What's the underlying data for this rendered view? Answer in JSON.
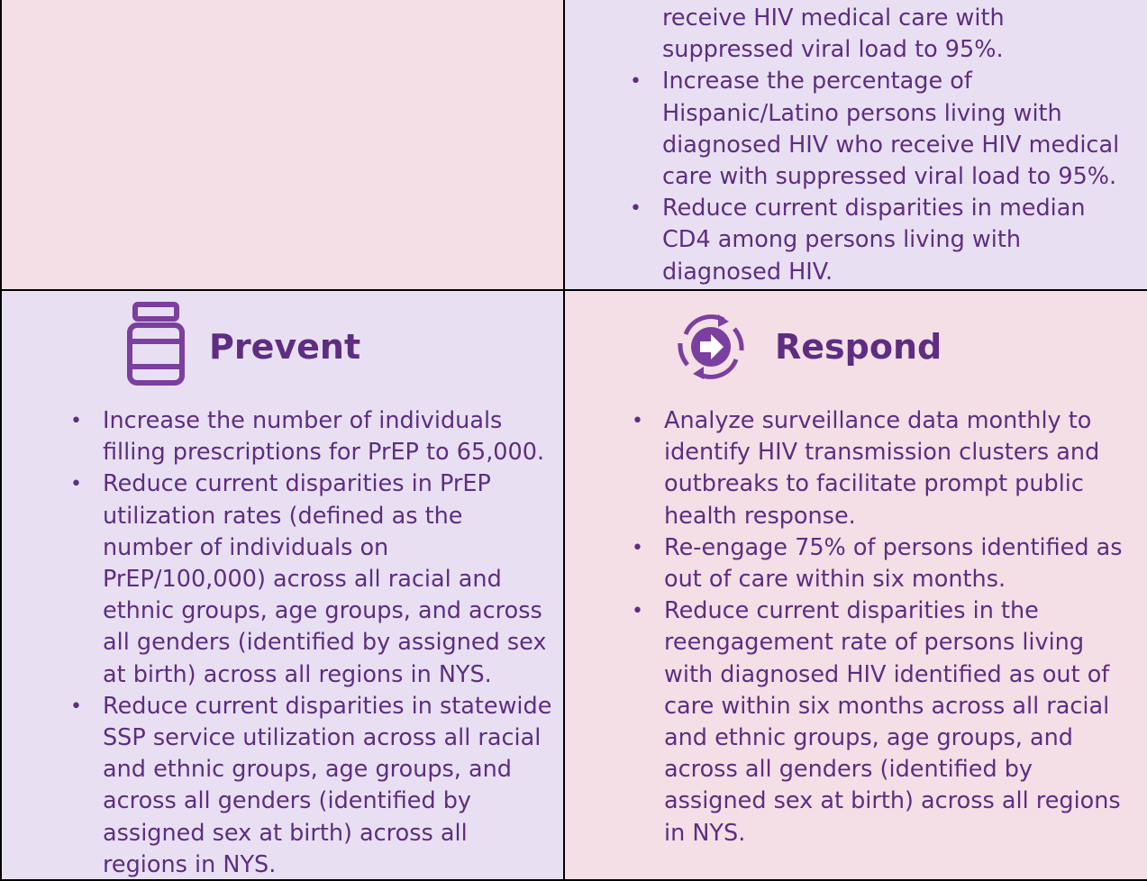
{
  "top_right": {
    "continuation": "receive HIV medical care with suppressed viral load to 95%.",
    "items": [
      "Increase the percentage of Hispanic/Latino persons living with diagnosed HIV who receive HIV medical care with suppressed viral load to 95%.",
      "Reduce current disparities in median CD4 among persons living with diagnosed HIV."
    ]
  },
  "prevent": {
    "title": "Prevent",
    "items": [
      "Increase the number of individuals filling prescriptions for PrEP to 65,000.",
      "Reduce current disparities in PrEP utilization rates (defined as the number of individuals on PrEP/100,000) across all racial and ethnic groups, age groups, and across all genders (identified by assigned sex at birth) across all regions in NYS.",
      "Reduce current disparities in statewide SSP service utilization across all racial and ethnic groups, age groups, and across all genders (identified by assigned sex at birth) across all regions in NYS."
    ]
  },
  "respond": {
    "title": "Respond",
    "items": [
      "Analyze surveillance data monthly to identify HIV transmission clusters and outbreaks to facilitate prompt public health response.",
      "Re-engage 75% of persons identified as out of care within six months.",
      "Reduce current disparities in the reengagement rate of persons living with diagnosed HIV identified as out of care within six months across all racial and ethnic groups, age groups, and across all genders (identified by assigned sex at birth) across all regions in NYS."
    ]
  }
}
